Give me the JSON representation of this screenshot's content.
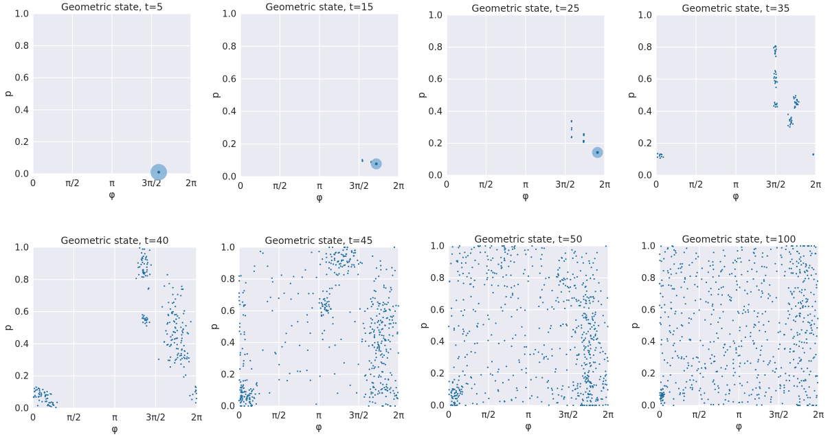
{
  "chart_data": [
    {
      "type": "scatter",
      "title": "Geometric state, t=5",
      "xlabel": "φ",
      "ylabel": "p",
      "xlim": [
        0,
        6.2832
      ],
      "ylim": [
        0,
        1
      ],
      "xticklabels": [
        "0",
        "π/2",
        "π",
        "3π/2",
        "2π"
      ],
      "yticklabels": [
        "0.0",
        "0.2",
        "0.4",
        "0.6",
        "0.8",
        "1.0"
      ],
      "grid": true,
      "clusters": [
        {
          "x": 5.0,
          "y": 0.012,
          "spread": [
            0.01,
            0.003
          ],
          "n": 6
        },
        {
          "x": 5.0,
          "y": 0.01,
          "spread": [
            0.0,
            0.0
          ],
          "n": 1,
          "halo": true
        }
      ]
    },
    {
      "type": "scatter",
      "title": "Geometric state, t=15",
      "xlabel": "φ",
      "ylabel": "p",
      "xlim": [
        0,
        6.2832
      ],
      "ylim": [
        0,
        1
      ],
      "xticklabels": [
        "0",
        "π/2",
        "π",
        "3π/2",
        "2π"
      ],
      "yticklabels": [
        "0.0",
        "0.2",
        "0.4",
        "0.6",
        "0.8",
        "1.0"
      ],
      "grid": true,
      "clusters": [
        {
          "x": 4.85,
          "y": 0.095,
          "spread": [
            0.004,
            0.01
          ],
          "n": 4
        },
        {
          "x": 5.2,
          "y": 0.09,
          "spread": [
            0.005,
            0.004
          ],
          "n": 3
        },
        {
          "x": 5.4,
          "y": 0.078,
          "spread": [
            0.005,
            0.003
          ],
          "n": 4
        },
        {
          "x": 5.4,
          "y": 0.078,
          "spread": [
            0.0,
            0.0
          ],
          "n": 1,
          "halo": true
        }
      ]
    },
    {
      "type": "scatter",
      "title": "Geometric state, t=25",
      "xlabel": "φ",
      "ylabel": "p",
      "xlim": [
        0,
        6.2832
      ],
      "ylim": [
        0,
        1
      ],
      "xticklabels": [
        "0",
        "π/2",
        "π",
        "3π/2",
        "2π"
      ],
      "yticklabels": [
        "0.0",
        "0.2",
        "0.4",
        "0.6",
        "0.8",
        "1.0"
      ],
      "grid": true,
      "clusters": [
        {
          "x": 4.97,
          "y": 0.335,
          "spread": [
            0.003,
            0.004
          ],
          "n": 2
        },
        {
          "x": 4.97,
          "y": 0.285,
          "spread": [
            0.003,
            0.004
          ],
          "n": 2
        },
        {
          "x": 4.97,
          "y": 0.24,
          "spread": [
            0.003,
            0.004
          ],
          "n": 2
        },
        {
          "x": 5.45,
          "y": 0.25,
          "spread": [
            0.01,
            0.006
          ],
          "n": 6
        },
        {
          "x": 5.45,
          "y": 0.21,
          "spread": [
            0.01,
            0.006
          ],
          "n": 5
        },
        {
          "x": 6.0,
          "y": 0.142,
          "spread": [
            0.008,
            0.004
          ],
          "n": 6
        },
        {
          "x": 6.0,
          "y": 0.142,
          "spread": [
            0.0,
            0.0
          ],
          "n": 1,
          "halo": true
        }
      ]
    },
    {
      "type": "scatter",
      "title": "Geometric state, t=35",
      "xlabel": "φ",
      "ylabel": "p",
      "xlim": [
        0,
        6.2832
      ],
      "ylim": [
        0,
        1
      ],
      "xticklabels": [
        "0",
        "π/2",
        "π",
        "3π/2",
        "2π"
      ],
      "yticklabels": [
        "0.0",
        "0.2",
        "0.4",
        "0.6",
        "0.8",
        "1.0"
      ],
      "grid": true,
      "clusters": [
        {
          "x": 0.15,
          "y": 0.12,
          "spread": [
            0.06,
            0.008
          ],
          "n": 10
        },
        {
          "x": 4.7,
          "y": 0.78,
          "spread": [
            0.03,
            0.025
          ],
          "n": 14
        },
        {
          "x": 4.7,
          "y": 0.6,
          "spread": [
            0.04,
            0.025
          ],
          "n": 14
        },
        {
          "x": 4.7,
          "y": 0.44,
          "spread": [
            0.05,
            0.01
          ],
          "n": 10
        },
        {
          "x": 5.5,
          "y": 0.45,
          "spread": [
            0.06,
            0.025
          ],
          "n": 20
        },
        {
          "x": 5.3,
          "y": 0.33,
          "spread": [
            0.05,
            0.02
          ],
          "n": 14
        },
        {
          "x": 6.2,
          "y": 0.13,
          "spread": [
            0.01,
            0.004
          ],
          "n": 5
        }
      ]
    },
    {
      "type": "scatter",
      "title": "Geometric state, t=40",
      "xlabel": "φ",
      "ylabel": "p",
      "xlim": [
        0,
        6.2832
      ],
      "ylim": [
        0,
        1
      ],
      "xticklabels": [
        "0",
        "π/2",
        "π",
        "3π/2",
        "2π"
      ],
      "yticklabels": [
        "0.0",
        "0.2",
        "0.4",
        "0.6",
        "0.8",
        "1.0"
      ],
      "grid": true,
      "clusters": [
        {
          "x": 0.25,
          "y": 0.08,
          "spread": [
            0.2,
            0.025
          ],
          "n": 45
        },
        {
          "x": 0.7,
          "y": 0.03,
          "spread": [
            0.1,
            0.015
          ],
          "n": 15
        },
        {
          "x": 4.3,
          "y": 0.88,
          "spread": [
            0.15,
            0.07
          ],
          "n": 45
        },
        {
          "x": 4.3,
          "y": 0.55,
          "spread": [
            0.08,
            0.02
          ],
          "n": 18
        },
        {
          "x": 5.5,
          "y": 0.5,
          "spread": [
            0.25,
            0.13
          ],
          "n": 90
        },
        {
          "x": 5.8,
          "y": 0.3,
          "spread": [
            0.12,
            0.05
          ],
          "n": 20
        },
        {
          "x": 6.25,
          "y": 0.12,
          "spread": [
            0.03,
            0.01
          ],
          "n": 4
        }
      ]
    },
    {
      "type": "scatter",
      "title": "Geometric state, t=45",
      "xlabel": "φ",
      "ylabel": "p",
      "xlim": [
        0,
        6.2832
      ],
      "ylim": [
        0,
        1
      ],
      "xticklabels": [
        "0",
        "π/2",
        "π",
        "3π/2",
        "2π"
      ],
      "yticklabels": [
        "0.0",
        "0.2",
        "0.4",
        "0.6",
        "0.8",
        "1.0"
      ],
      "grid": true,
      "clusters": [
        {
          "x": 0.25,
          "y": 0.06,
          "spread": [
            0.25,
            0.04
          ],
          "n": 80
        },
        {
          "x": 0.1,
          "y": 0.45,
          "spread": [
            0.12,
            0.25
          ],
          "n": 35
        },
        {
          "x": 4.0,
          "y": 0.93,
          "spread": [
            0.35,
            0.06
          ],
          "n": 80
        },
        {
          "x": 3.4,
          "y": 0.65,
          "spread": [
            0.2,
            0.05
          ],
          "n": 40
        },
        {
          "x": 5.6,
          "y": 0.45,
          "spread": [
            0.3,
            0.2
          ],
          "n": 170
        },
        {
          "x": 5.6,
          "y": 0.1,
          "spread": [
            0.6,
            0.05
          ],
          "n": 50
        },
        {
          "x": 3.14,
          "y": 0.5,
          "spread": [
            3.14,
            0.5
          ],
          "n": 90,
          "uniform": true
        }
      ]
    },
    {
      "type": "scatter",
      "title": "Geometric state, t=50",
      "xlabel": "φ",
      "ylabel": "p",
      "xlim": [
        0,
        6.2832
      ],
      "ylim": [
        0,
        1
      ],
      "xticklabels": [
        "0",
        "π/2",
        "π",
        "3π/2",
        "2π"
      ],
      "yticklabels": [
        "0.0",
        "0.2",
        "0.4",
        "0.6",
        "0.8",
        "1.0"
      ],
      "grid": true,
      "clusters": [
        {
          "x": 0.2,
          "y": 0.07,
          "spread": [
            0.2,
            0.05
          ],
          "n": 60
        },
        {
          "x": 5.5,
          "y": 0.42,
          "spread": [
            0.25,
            0.2
          ],
          "n": 140
        },
        {
          "x": 4.5,
          "y": 0.75,
          "spread": [
            0.3,
            0.06
          ],
          "n": 30
        },
        {
          "x": 2.0,
          "y": 0.9,
          "spread": [
            0.8,
            0.1
          ],
          "n": 60
        },
        {
          "x": 5.5,
          "y": 0.08,
          "spread": [
            0.6,
            0.07
          ],
          "n": 70
        },
        {
          "x": 3.14,
          "y": 0.5,
          "spread": [
            3.14,
            0.5
          ],
          "n": 320,
          "uniform": true
        }
      ]
    },
    {
      "type": "scatter",
      "title": "Geometric state, t=100",
      "xlabel": "φ",
      "ylabel": "p",
      "xlim": [
        0,
        6.2832
      ],
      "ylim": [
        0,
        1
      ],
      "xticklabels": [
        "0",
        "π/2",
        "π",
        "3π/2",
        "2π"
      ],
      "yticklabels": [
        "0.0",
        "0.2",
        "0.4",
        "0.6",
        "0.8",
        "1.0"
      ],
      "grid": true,
      "clusters": [
        {
          "x": 0.1,
          "y": 0.06,
          "spread": [
            0.08,
            0.02
          ],
          "n": 30
        },
        {
          "x": 5.8,
          "y": 0.5,
          "spread": [
            0.4,
            0.4
          ],
          "n": 120
        },
        {
          "x": 3.14,
          "y": 0.5,
          "spread": [
            3.14,
            0.5
          ],
          "n": 560,
          "uniform": true
        }
      ]
    }
  ],
  "colors": {
    "point": "#1f6fa0",
    "halo": "#7fb0d5",
    "axes_bg": "#eaeaf2",
    "grid": "#ffffff",
    "text": "#262626"
  }
}
